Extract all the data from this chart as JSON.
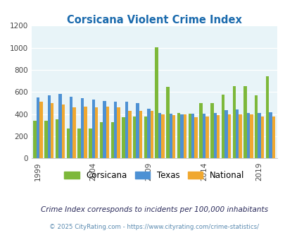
{
  "title": "Corsicana Violent Crime Index",
  "years": [
    1999,
    2000,
    2001,
    2002,
    2003,
    2004,
    2005,
    2006,
    2007,
    2008,
    2009,
    2010,
    2011,
    2012,
    2013,
    2014,
    2015,
    2016,
    2017,
    2018,
    2019,
    2020
  ],
  "corsicana": [
    340,
    340,
    355,
    270,
    270,
    270,
    330,
    330,
    370,
    380,
    380,
    1005,
    650,
    410,
    405,
    500,
    500,
    575,
    655,
    655,
    570,
    745
  ],
  "texas": [
    550,
    570,
    580,
    555,
    545,
    530,
    520,
    515,
    510,
    500,
    450,
    410,
    405,
    400,
    405,
    405,
    410,
    435,
    445,
    410,
    410,
    420
  ],
  "national": [
    510,
    500,
    490,
    465,
    470,
    465,
    470,
    460,
    430,
    430,
    430,
    395,
    390,
    395,
    375,
    380,
    390,
    395,
    400,
    395,
    380,
    380
  ],
  "corsicana_color": "#7db83a",
  "texas_color": "#4d91d4",
  "national_color": "#f0a830",
  "bg_color": "#e8f4f8",
  "ylim": [
    0,
    1200
  ],
  "yticks": [
    0,
    200,
    400,
    600,
    800,
    1000,
    1200
  ],
  "xlabel_ticks": [
    1999,
    2004,
    2009,
    2014,
    2019
  ],
  "subtitle": "Crime Index corresponds to incidents per 100,000 inhabitants",
  "footer": "© 2025 CityRating.com - https://www.cityrating.com/crime-statistics/",
  "legend_labels": [
    "Corsicana",
    "Texas",
    "National"
  ],
  "title_color": "#1a6aad",
  "subtitle_color": "#2a2a5a",
  "footer_color": "#5a8ab0"
}
